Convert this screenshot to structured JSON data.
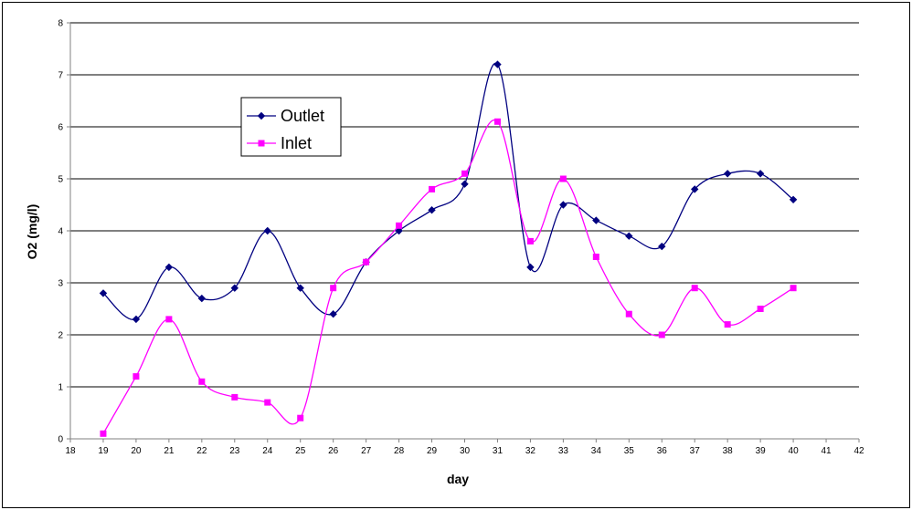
{
  "chart_data": {
    "type": "line",
    "title": "",
    "xlabel": "day",
    "ylabel": "O2 (mg/l)",
    "xlim": [
      18,
      42
    ],
    "ylim": [
      0,
      8
    ],
    "x_ticks": [
      18,
      19,
      20,
      21,
      22,
      23,
      24,
      25,
      26,
      27,
      28,
      29,
      30,
      31,
      32,
      33,
      34,
      35,
      36,
      37,
      38,
      39,
      40,
      41,
      42
    ],
    "y_ticks": [
      0,
      1,
      2,
      3,
      4,
      5,
      6,
      7,
      8
    ],
    "grid": {
      "horizontal": true,
      "vertical": false
    },
    "smoothed": true,
    "legend_position": "upper-left",
    "series": [
      {
        "name": "Outlet",
        "color": "#000080",
        "marker": "diamond",
        "x": [
          19,
          20,
          21,
          22,
          23,
          24,
          25,
          26,
          27,
          28,
          29,
          30,
          31,
          32,
          33,
          34,
          35,
          36,
          37,
          38,
          39,
          40
        ],
        "y": [
          2.8,
          2.3,
          3.3,
          2.7,
          2.9,
          4.0,
          2.9,
          2.4,
          3.4,
          4.0,
          4.4,
          4.9,
          7.2,
          3.3,
          4.5,
          4.2,
          3.9,
          3.7,
          4.8,
          5.1,
          5.1,
          4.6
        ]
      },
      {
        "name": "Inlet",
        "color": "#FF00FF",
        "marker": "square",
        "x": [
          19,
          20,
          21,
          22,
          23,
          24,
          25,
          26,
          27,
          28,
          29,
          30,
          31,
          32,
          33,
          34,
          35,
          36,
          37,
          38,
          39,
          40
        ],
        "y": [
          0.1,
          1.2,
          2.3,
          1.1,
          0.8,
          0.7,
          0.4,
          2.9,
          3.4,
          4.1,
          4.8,
          5.1,
          6.1,
          3.8,
          5.0,
          3.5,
          2.4,
          2.0,
          2.9,
          2.2,
          2.5,
          2.9
        ]
      }
    ]
  }
}
